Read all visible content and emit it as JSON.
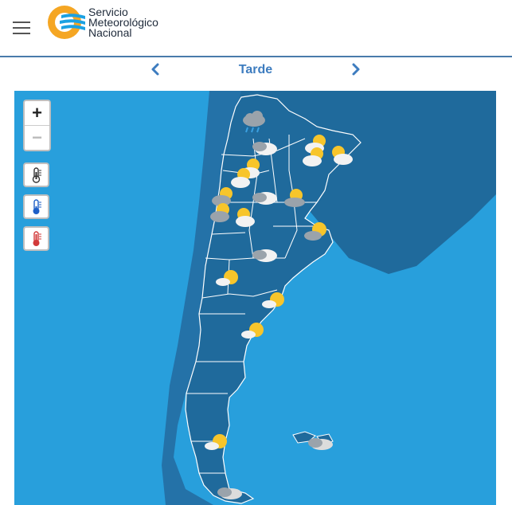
{
  "brand": {
    "line1": "Servicio",
    "line2": "Meteorológico",
    "line3": "Nacional",
    "colors": {
      "orange": "#f5a623",
      "blue": "#1ba1e2",
      "text": "#1e2a3a"
    }
  },
  "nav": {
    "period": "Tarde",
    "prev_icon": "chevron-left-icon",
    "next_icon": "chevron-right-icon",
    "color": "#3d7cbf"
  },
  "map": {
    "ocean_color": "#289fdc",
    "land_color": "#1f6a9c",
    "border_color": "#ffffff",
    "zoom_in_label": "+",
    "zoom_out_label": "−",
    "layer_buttons": [
      {
        "name": "temperature-layer-button",
        "icon": "thermometer-icon"
      },
      {
        "name": "min-temperature-layer-button",
        "icon": "thermometer-cold-icon"
      },
      {
        "name": "max-temperature-layer-button",
        "icon": "thermometer-hot-icon"
      }
    ],
    "weather_icons": [
      "rain-cloud-icon",
      "partly-cloudy-icon",
      "partly-cloudy-icon",
      "partly-cloudy-icon",
      "partly-cloudy-icon",
      "cloudy-icon",
      "partly-cloudy-icon",
      "partly-cloudy-icon",
      "cloudy-icon",
      "partly-cloudy-icon",
      "partly-cloudy-icon",
      "partly-cloudy-icon",
      "partly-cloudy-icon",
      "partly-cloudy-icon",
      "cloudy-icon",
      "partly-cloudy-icon",
      "partly-cloudy-icon",
      "partly-cloudy-icon",
      "partly-cloudy-icon",
      "cloudy-icon",
      "cloudy-icon"
    ]
  }
}
